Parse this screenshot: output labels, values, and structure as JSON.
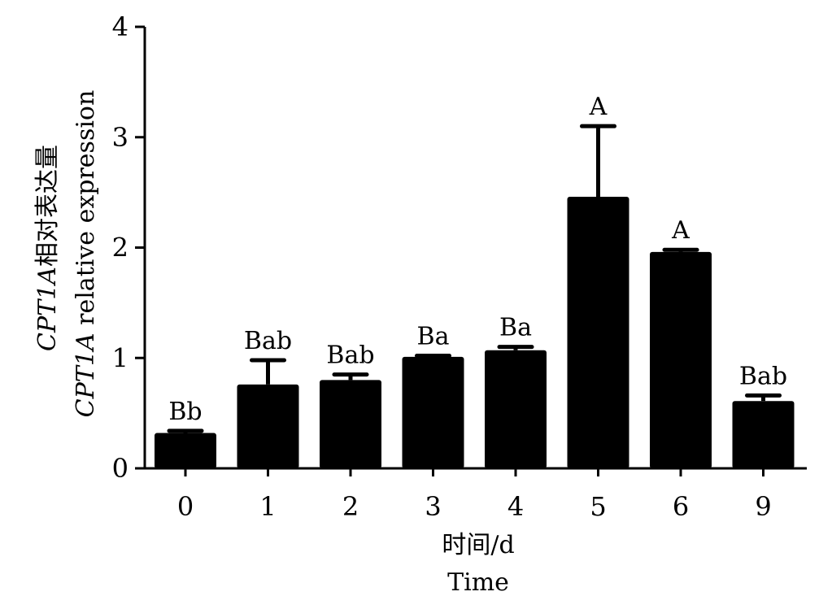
{
  "chart_data": {
    "type": "bar",
    "categories": [
      "0",
      "1",
      "2",
      "3",
      "4",
      "5",
      "6",
      "9"
    ],
    "values": [
      0.32,
      0.76,
      0.8,
      1.01,
      1.07,
      2.46,
      1.96,
      0.61
    ],
    "errors": [
      0.02,
      0.22,
      0.05,
      0.01,
      0.03,
      0.64,
      0.02,
      0.05
    ],
    "annotations": [
      "Bb",
      "Bab",
      "Bab",
      "Ba",
      "Ba",
      "A",
      "A",
      "Bab"
    ],
    "xlabel_cn": "时间/d",
    "xlabel_en": "Time",
    "ylabel_cn_gene": "CPT1A",
    "ylabel_cn_text": "相对表达量",
    "ylabel_en_gene": "CPT1A",
    "ylabel_en_text": " relative expression",
    "ylim": [
      0,
      4
    ],
    "yticks": [
      "0",
      "1",
      "2",
      "3",
      "4"
    ],
    "grid": false,
    "legend": "none",
    "bar_color": "#000000"
  }
}
